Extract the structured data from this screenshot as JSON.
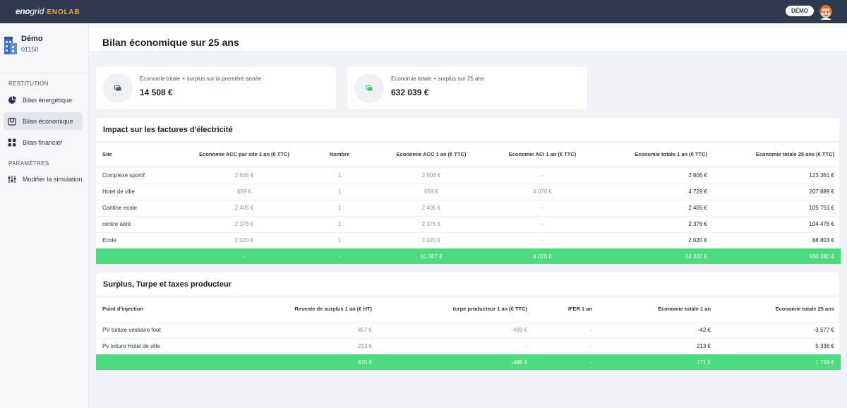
{
  "brand": {
    "part1": "eno",
    "part2": "grid",
    "part3": "ENOLAB"
  },
  "topbar": {
    "badge": "DÉMO"
  },
  "client": {
    "name": "Démo",
    "code": "01150"
  },
  "sidebar": {
    "restitution_title": "RESTITUTION",
    "items": [
      {
        "label": "Bilan énergétique",
        "icon": "pie-chart-icon"
      },
      {
        "label": "Bilan économique",
        "icon": "wallet-icon"
      },
      {
        "label": "Bilan financier",
        "icon": "grid-icon"
      }
    ],
    "parametres_title": "PARAMÈTRES",
    "param_items": [
      {
        "label": "Modifier la simulation",
        "icon": "sliders-icon"
      }
    ]
  },
  "page": {
    "title": "Bilan économique sur 25 ans"
  },
  "stats": [
    {
      "label": "Economie totale + surplus sur la première année",
      "value": "14 508 €",
      "icon_color": "#4a5568"
    },
    {
      "label": "Economie totale + surplus sur 25 ans",
      "value": "632 039 €",
      "icon_color": "#3cc46f"
    }
  ],
  "impact": {
    "title": "Impact sur les factures d'électricité",
    "headers": [
      "Site",
      "Economie ACC par site 1 an (€ TTC)",
      "Nombre",
      "Economie ACC 1 an (€ TTC)",
      "Economie ACI 1 an (€ TTC)",
      "Economie totale 1 an (€ TTC)",
      "Economie totale 25 ans (€ TTC)"
    ],
    "rows": [
      [
        "Complexe sportif",
        "2 806 €",
        "1",
        "2 806 €",
        "-",
        "2 806 €",
        "123 361 €"
      ],
      [
        "Hotel de ville",
        "659 €",
        "1",
        "659 €",
        "4 070 €",
        "4 729 €",
        "207 889 €"
      ],
      [
        "Cantine ecole",
        "2 405 €",
        "1",
        "2 405 €",
        "-",
        "2 405 €",
        "105 751 €"
      ],
      [
        "centre aéré",
        "2 376 €",
        "1",
        "2 376 €",
        "-",
        "2 376 €",
        "104 476 €"
      ],
      [
        "Ecole",
        "2 020 €",
        "1",
        "2 020 €",
        "-",
        "2 020 €",
        "88 803 €"
      ]
    ],
    "total": [
      "",
      "-",
      "-",
      "10 267 €",
      "4 070 €",
      "14 337 €",
      "630 280 €"
    ]
  },
  "surplus": {
    "title": "Surplus, Turpe et taxes producteur",
    "headers": [
      "Point d'injection",
      "Revente de surplus 1 an (€ HT)",
      "turpe producteur 1 an (€ TTC)",
      "IFER 1 an",
      "Economie totale 1 an",
      "Economie totale 25 ans"
    ],
    "rows": [
      [
        "PV toiture vestiaire foot",
        "457 €",
        "-499 €",
        "-",
        "-42 €",
        "-3 577 €"
      ],
      [
        "Pv toiture Hotel de ville",
        "213 €",
        "-",
        "-",
        "213 €",
        "5 336 €"
      ]
    ],
    "total": [
      "",
      "670 €",
      "-499 €",
      "-",
      "171 €",
      "1 759 €"
    ]
  }
}
